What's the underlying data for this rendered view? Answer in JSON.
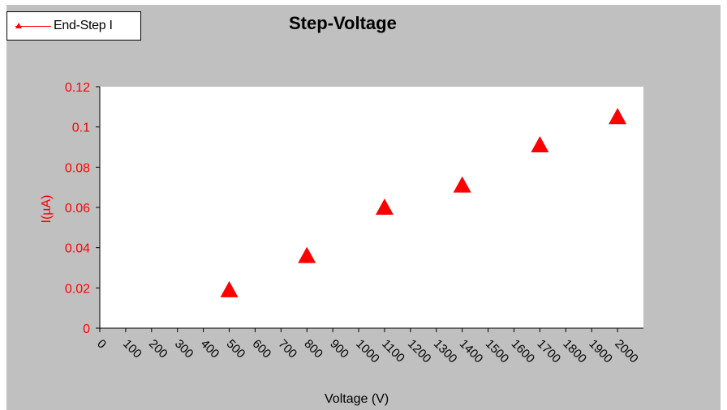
{
  "chart_data": {
    "type": "scatter",
    "title": "Step-Voltage",
    "xlabel": "Voltage (V)",
    "ylabel": "I(µA)",
    "xlim": [
      0,
      2100
    ],
    "ylim": [
      0,
      0.12
    ],
    "x_ticks": [
      "0",
      "100",
      "200",
      "300",
      "400",
      "500",
      "600",
      "700",
      "800",
      "900",
      "1000",
      "1100",
      "1200",
      "1300",
      "1400",
      "1500",
      "1600",
      "1700",
      "1800",
      "1900",
      "2000"
    ],
    "y_ticks": [
      "0",
      "0.02",
      "0.04",
      "0.06",
      "0.08",
      "0.1",
      "0.12"
    ],
    "grid": false,
    "legend": "top-left",
    "series": [
      {
        "name": "End-Step I",
        "color": "#ff0000",
        "marker": "triangle",
        "x": [
          500,
          800,
          1100,
          1400,
          1700,
          2000
        ],
        "y": [
          0.019,
          0.036,
          0.06,
          0.071,
          0.091,
          0.105
        ]
      }
    ]
  },
  "colors": {
    "frame_background": "#c0c0c0",
    "plot_background": "#ffffff",
    "axis_text": "#ff0000",
    "series": "#ff0000"
  }
}
